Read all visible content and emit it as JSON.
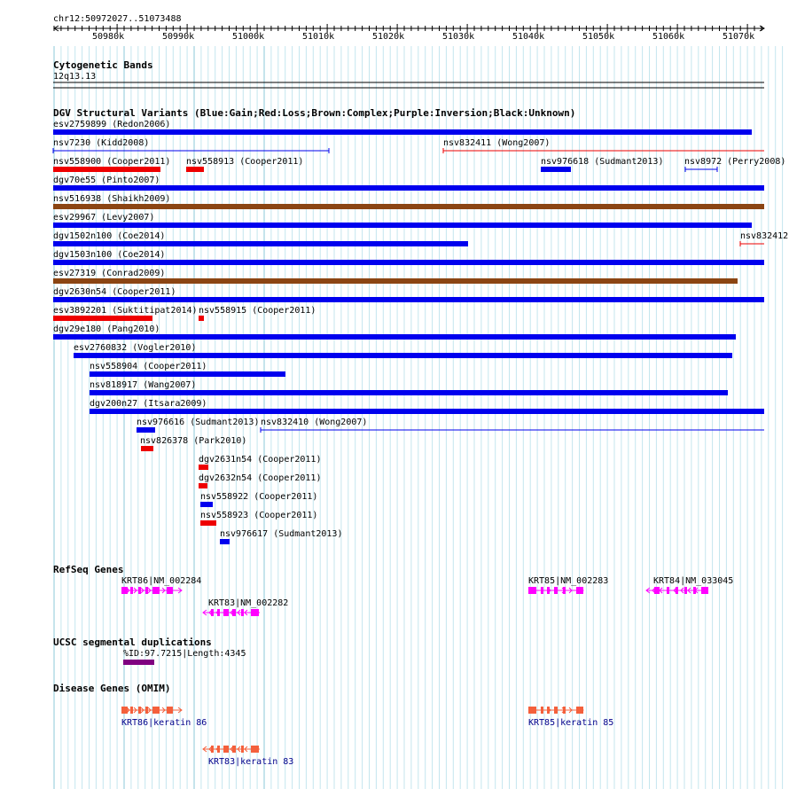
{
  "header": {
    "location": "chr12:50972027..51073488"
  },
  "ruler": {
    "ticks": [
      "50980k",
      "50990k",
      "51000k",
      "51010k",
      "51020k",
      "51030k",
      "51040k",
      "51050k",
      "51060k",
      "51070k"
    ]
  },
  "cytoband": {
    "title": "Cytogenetic Bands",
    "band": "12q13.13"
  },
  "dgv": {
    "title": "DGV Structural Variants (Blue:Gain;Red:Loss;Brown:Complex;Purple:Inversion;Black:Unknown)",
    "colors": {
      "gain": "#0000ee",
      "loss": "#ee0000",
      "complex": "#8b4513",
      "inversion": "#800080",
      "unknown": "#000000"
    },
    "variants": [
      {
        "label": "esv2759899 (Redon2006)",
        "type": "gain"
      },
      {
        "label": "nsv7230 (Kidd2008)",
        "type": "gain"
      },
      {
        "label": "nsv832411 (Wong2007)",
        "type": "loss"
      },
      {
        "label": "nsv558900 (Cooper2011)",
        "type": "loss"
      },
      {
        "label": "nsv558913 (Cooper2011)",
        "type": "loss"
      },
      {
        "label": "nsv976618 (Sudmant2013)",
        "type": "gain"
      },
      {
        "label": "nsv8972 (Perry2008)",
        "type": "gain"
      },
      {
        "label": "dgv70e55 (Pinto2007)",
        "type": "gain"
      },
      {
        "label": "nsv516938 (Shaikh2009)",
        "type": "complex"
      },
      {
        "label": "esv29967 (Levy2007)",
        "type": "gain"
      },
      {
        "label": "dgv1502n100 (Coe2014)",
        "type": "gain"
      },
      {
        "label": "nsv832412",
        "type": "loss"
      },
      {
        "label": "dgv1503n100 (Coe2014)",
        "type": "gain"
      },
      {
        "label": "esv27319 (Conrad2009)",
        "type": "complex"
      },
      {
        "label": "dgv2630n54 (Cooper2011)",
        "type": "gain"
      },
      {
        "label": "esv3892201 (Suktitipat2014)",
        "type": "loss"
      },
      {
        "label": "nsv558915 (Cooper2011)",
        "type": "loss"
      },
      {
        "label": "dgv29e180 (Pang2010)",
        "type": "gain"
      },
      {
        "label": "esv2760832 (Vogler2010)",
        "type": "gain"
      },
      {
        "label": "nsv558904 (Cooper2011)",
        "type": "gain"
      },
      {
        "label": "nsv818917 (Wang2007)",
        "type": "gain"
      },
      {
        "label": "dgv200n27 (Itsara2009)",
        "type": "gain"
      },
      {
        "label": "nsv976616 (Sudmant2013)",
        "type": "gain"
      },
      {
        "label": "nsv832410 (Wong2007)",
        "type": "gain"
      },
      {
        "label": "nsv826378 (Park2010)",
        "type": "loss"
      },
      {
        "label": "dgv2631n54 (Cooper2011)",
        "type": "loss"
      },
      {
        "label": "dgv2632n54 (Cooper2011)",
        "type": "loss"
      },
      {
        "label": "nsv558922 (Cooper2011)",
        "type": "gain"
      },
      {
        "label": "nsv558923 (Cooper2011)",
        "type": "loss"
      },
      {
        "label": "nsv976617 (Sudmant2013)",
        "type": "gain"
      }
    ]
  },
  "refseq": {
    "title": "RefSeq Genes",
    "color": "#ff00ff",
    "genes": [
      "KRT86|NM_002284",
      "KRT83|NM_002282",
      "KRT85|NM_002283",
      "KRT84|NM_033045"
    ]
  },
  "segdup": {
    "title": "UCSC segmental duplications",
    "label": "%ID:97.7215|Length:4345",
    "color": "#800080"
  },
  "omim": {
    "title": "Disease Genes (OMIM)",
    "color": "#f4603c",
    "genes": [
      "KRT86|keratin 86",
      "KRT85|keratin 85",
      "KRT83|keratin 83"
    ]
  }
}
